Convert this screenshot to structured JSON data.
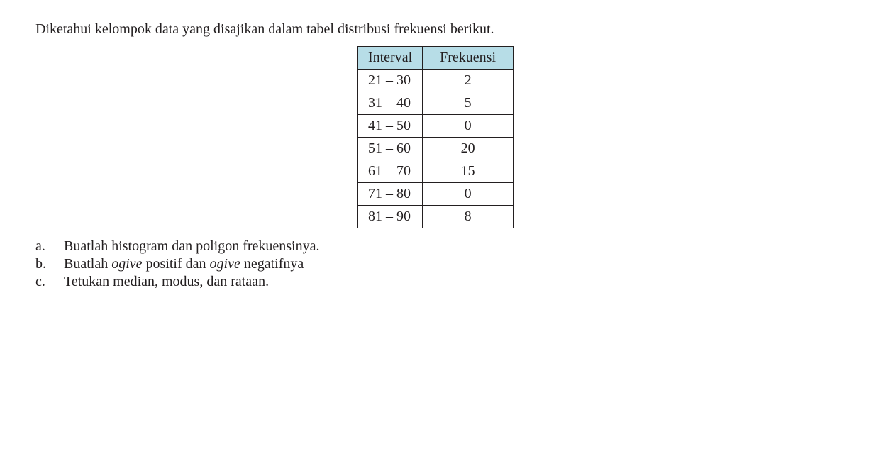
{
  "intro": "Diketahui kelompok data yang disajikan dalam tabel distribusi frekuensi berikut.",
  "table": {
    "header_bg": "#b7dde7",
    "border_color": "#231f20",
    "columns": [
      "Interval",
      "Frekuensi"
    ],
    "rows": [
      {
        "interval": "21 – 30",
        "freq": "2"
      },
      {
        "interval": "31 – 40",
        "freq": "5"
      },
      {
        "interval": "41 – 50",
        "freq": "0"
      },
      {
        "interval": "51 – 60",
        "freq": "20"
      },
      {
        "interval": "61 – 70",
        "freq": "15"
      },
      {
        "interval": "71 – 80",
        "freq": "0"
      },
      {
        "interval": "81 – 90",
        "freq": "8"
      }
    ]
  },
  "questions": {
    "a": {
      "label": "a.",
      "text_before": "Buatlah histogram dan poligon frekuensinya."
    },
    "b": {
      "label": "b.",
      "text_before": "Buatlah ",
      "italic1": "ogive ",
      "mid": "positif dan ",
      "italic2": "ogive ",
      "after": "negatifnya"
    },
    "c": {
      "label": "c.",
      "text_before": "Tetukan median, modus, dan rataan."
    }
  },
  "typography": {
    "font_family": "Palatino Linotype",
    "font_size": 20,
    "text_color": "#231f20",
    "background_color": "#ffffff"
  }
}
